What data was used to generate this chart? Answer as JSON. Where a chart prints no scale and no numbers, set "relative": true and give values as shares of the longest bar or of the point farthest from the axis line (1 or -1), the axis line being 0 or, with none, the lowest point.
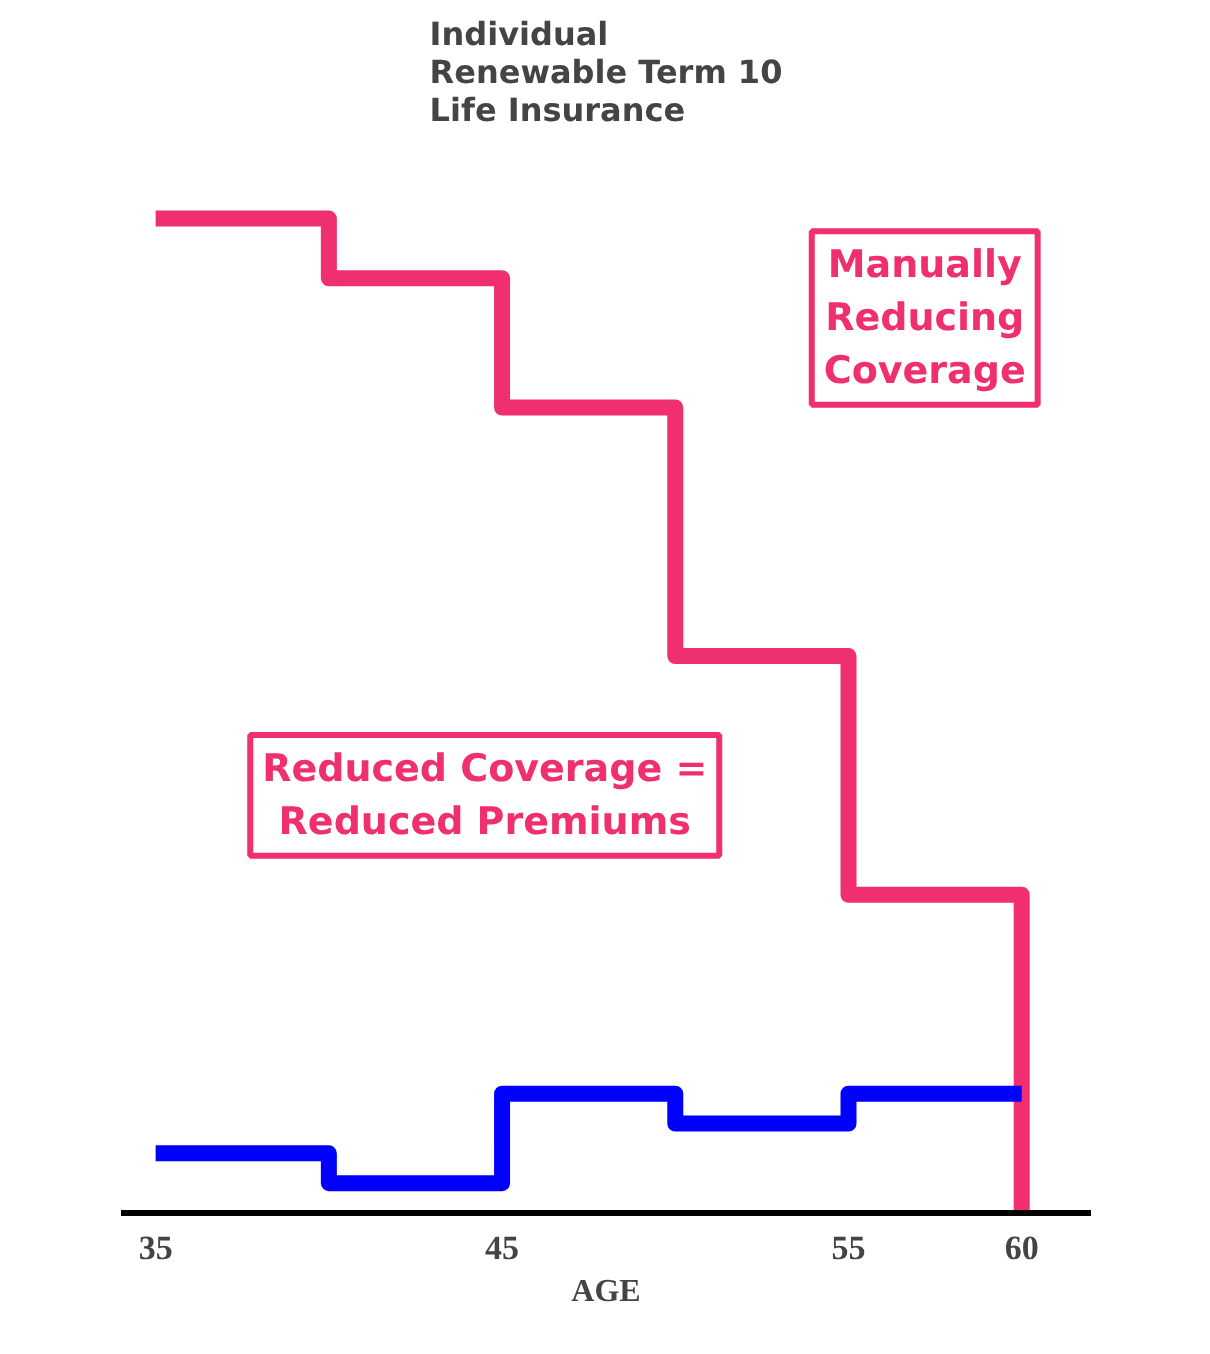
{
  "chart_data": {
    "type": "step",
    "title": "Individual\nRenewable Term 10\nLife Insurance",
    "xlabel": "AGE",
    "relative": true,
    "x": [
      35,
      40,
      45,
      50,
      55,
      60
    ],
    "series": [
      {
        "color": "#f0306e",
        "values": [
          1,
          0.94,
          0.81,
          0.56,
          0.32,
          0
        ]
      },
      {
        "color": "#0000ff",
        "values": [
          0.06,
          0.03,
          0.12,
          0.09,
          0.12,
          0.12
        ]
      }
    ],
    "xlim": [
      34,
      62
    ],
    "xticks": [
      35,
      45,
      55,
      60
    ],
    "tick_labels": "x",
    "grid": false,
    "annotations": [
      "Manually\nReducing\nCoverage",
      "Reduced Coverage =\nReduced Premiums"
    ]
  }
}
